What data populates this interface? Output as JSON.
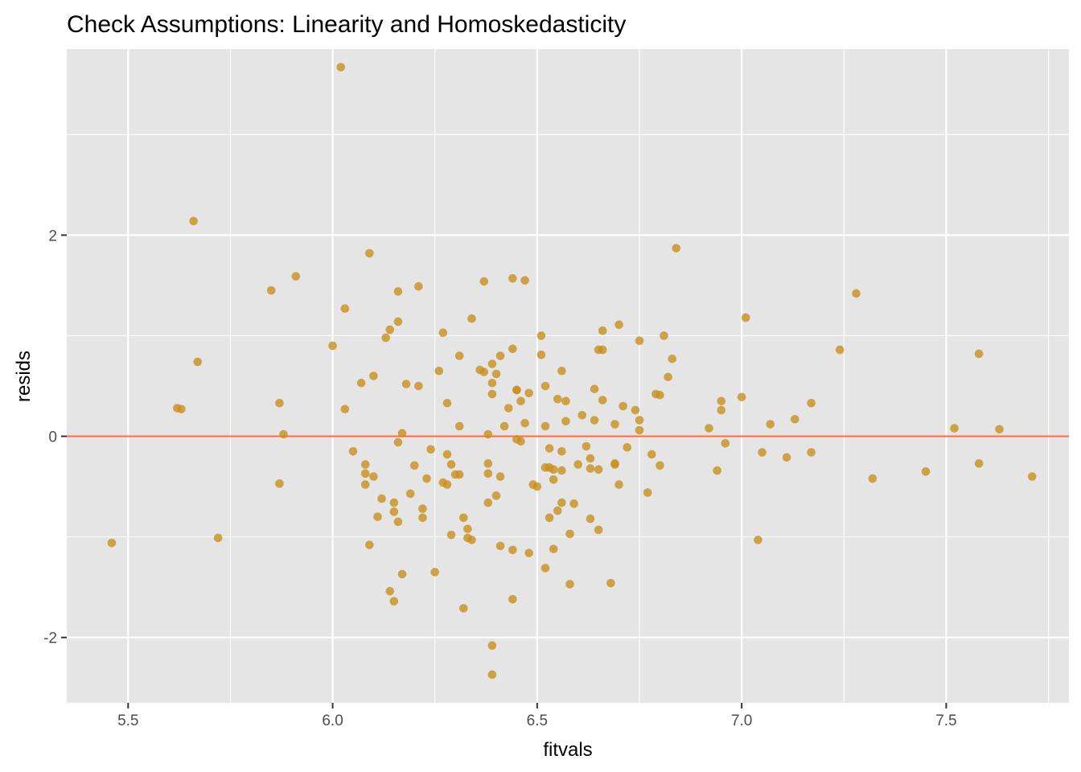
{
  "chart_data": {
    "type": "scatter",
    "title": "Check Assumptions: Linearity and Homoskedasticity",
    "xlabel": "fitvals",
    "ylabel": "resids",
    "xlim": [
      5.35,
      7.8
    ],
    "ylim": [
      -2.65,
      3.85
    ],
    "x_ticks": [
      5.5,
      6.0,
      6.5,
      7.0,
      7.5
    ],
    "x_tick_labels": [
      "5.5",
      "6.0",
      "6.5",
      "7.0",
      "7.5"
    ],
    "y_ticks": [
      -2,
      0,
      2
    ],
    "y_tick_labels": [
      "-2",
      "0",
      "2"
    ],
    "grid": true,
    "reference_line": {
      "y": 0,
      "color": "#FF7043"
    },
    "colors": {
      "panel": "#E5E5E5",
      "grid": "#FFFFFF",
      "point": "#C8901E"
    },
    "points": [
      [
        5.46,
        -1.06
      ],
      [
        5.62,
        0.28
      ],
      [
        5.63,
        0.27
      ],
      [
        5.66,
        2.14
      ],
      [
        5.67,
        0.74
      ],
      [
        5.72,
        -1.01
      ],
      [
        5.85,
        1.45
      ],
      [
        5.87,
        0.33
      ],
      [
        5.87,
        -0.47
      ],
      [
        5.88,
        0.02
      ],
      [
        5.91,
        1.59
      ],
      [
        6.0,
        0.9
      ],
      [
        6.02,
        3.67
      ],
      [
        6.03,
        1.27
      ],
      [
        6.03,
        0.27
      ],
      [
        6.05,
        -0.15
      ],
      [
        6.07,
        0.53
      ],
      [
        6.08,
        -0.28
      ],
      [
        6.08,
        -0.37
      ],
      [
        6.08,
        -0.48
      ],
      [
        6.09,
        1.82
      ],
      [
        6.09,
        -1.08
      ],
      [
        6.1,
        -0.4
      ],
      [
        6.1,
        0.6
      ],
      [
        6.11,
        -0.8
      ],
      [
        6.12,
        -0.62
      ],
      [
        6.13,
        0.98
      ],
      [
        6.14,
        1.06
      ],
      [
        6.14,
        -1.54
      ],
      [
        6.15,
        -1.64
      ],
      [
        6.15,
        -0.66
      ],
      [
        6.15,
        -0.75
      ],
      [
        6.16,
        -0.85
      ],
      [
        6.16,
        1.14
      ],
      [
        6.16,
        1.44
      ],
      [
        6.16,
        -0.06
      ],
      [
        6.17,
        0.03
      ],
      [
        6.17,
        -1.37
      ],
      [
        6.18,
        0.52
      ],
      [
        6.19,
        -0.57
      ],
      [
        6.2,
        -0.29
      ],
      [
        6.21,
        0.5
      ],
      [
        6.21,
        1.49
      ],
      [
        6.22,
        -0.72
      ],
      [
        6.22,
        -0.81
      ],
      [
        6.23,
        -0.42
      ],
      [
        6.24,
        -0.13
      ],
      [
        6.25,
        -1.35
      ],
      [
        6.26,
        0.65
      ],
      [
        6.27,
        -0.46
      ],
      [
        6.27,
        1.03
      ],
      [
        6.28,
        0.33
      ],
      [
        6.28,
        -0.48
      ],
      [
        6.28,
        -0.18
      ],
      [
        6.29,
        -0.28
      ],
      [
        6.29,
        -0.98
      ],
      [
        6.3,
        -0.38
      ],
      [
        6.31,
        -0.38
      ],
      [
        6.31,
        0.8
      ],
      [
        6.31,
        0.1
      ],
      [
        6.32,
        -0.81
      ],
      [
        6.33,
        -0.92
      ],
      [
        6.33,
        -1.01
      ],
      [
        6.32,
        -1.71
      ],
      [
        6.34,
        1.17
      ],
      [
        6.34,
        -1.03
      ],
      [
        6.36,
        0.66
      ],
      [
        6.37,
        1.54
      ],
      [
        6.37,
        0.64
      ],
      [
        6.38,
        -0.27
      ],
      [
        6.38,
        -0.66
      ],
      [
        6.38,
        -0.37
      ],
      [
        6.38,
        0.02
      ],
      [
        6.39,
        0.53
      ],
      [
        6.39,
        0.72
      ],
      [
        6.39,
        0.42
      ],
      [
        6.39,
        -2.08
      ],
      [
        6.39,
        -2.37
      ],
      [
        6.4,
        0.62
      ],
      [
        6.4,
        -0.59
      ],
      [
        6.41,
        0.8
      ],
      [
        6.41,
        -0.4
      ],
      [
        6.41,
        -1.09
      ],
      [
        6.42,
        0.1
      ],
      [
        6.43,
        0.28
      ],
      [
        6.44,
        -1.62
      ],
      [
        6.44,
        -1.13
      ],
      [
        6.44,
        0.87
      ],
      [
        6.44,
        1.57
      ],
      [
        6.45,
        0.46
      ],
      [
        6.45,
        0.46
      ],
      [
        6.45,
        -0.03
      ],
      [
        6.46,
        0.35
      ],
      [
        6.46,
        -0.05
      ],
      [
        6.47,
        1.55
      ],
      [
        6.47,
        0.13
      ],
      [
        6.48,
        0.43
      ],
      [
        6.48,
        -1.16
      ],
      [
        6.49,
        -0.48
      ],
      [
        6.5,
        -0.5
      ],
      [
        6.51,
        1.0
      ],
      [
        6.51,
        0.81
      ],
      [
        6.52,
        0.5
      ],
      [
        6.52,
        0.1
      ],
      [
        6.52,
        -1.31
      ],
      [
        6.52,
        -0.31
      ],
      [
        6.53,
        -0.12
      ],
      [
        6.53,
        -0.31
      ],
      [
        6.53,
        -0.81
      ],
      [
        6.54,
        -0.43
      ],
      [
        6.54,
        -1.12
      ],
      [
        6.54,
        -0.33
      ],
      [
        6.55,
        -0.74
      ],
      [
        6.55,
        0.37
      ],
      [
        6.56,
        -0.34
      ],
      [
        6.56,
        -0.66
      ],
      [
        6.56,
        -0.15
      ],
      [
        6.56,
        0.65
      ],
      [
        6.57,
        0.35
      ],
      [
        6.57,
        0.15
      ],
      [
        6.58,
        -0.97
      ],
      [
        6.58,
        -1.47
      ],
      [
        6.59,
        -0.67
      ],
      [
        6.6,
        -0.28
      ],
      [
        6.61,
        0.21
      ],
      [
        6.62,
        -0.1
      ],
      [
        6.63,
        -0.22
      ],
      [
        6.63,
        -0.32
      ],
      [
        6.63,
        -0.82
      ],
      [
        6.64,
        0.47
      ],
      [
        6.64,
        0.16
      ],
      [
        6.65,
        0.86
      ],
      [
        6.65,
        -0.93
      ],
      [
        6.65,
        -0.33
      ],
      [
        6.66,
        0.86
      ],
      [
        6.66,
        0.36
      ],
      [
        6.66,
        1.05
      ],
      [
        6.68,
        -1.46
      ],
      [
        6.69,
        -0.27
      ],
      [
        6.69,
        -0.28
      ],
      [
        6.69,
        0.12
      ],
      [
        6.7,
        1.11
      ],
      [
        6.7,
        -0.48
      ],
      [
        6.71,
        0.3
      ],
      [
        6.72,
        -0.11
      ],
      [
        6.74,
        0.26
      ],
      [
        6.75,
        0.16
      ],
      [
        6.75,
        0.06
      ],
      [
        6.75,
        0.95
      ],
      [
        6.77,
        -0.56
      ],
      [
        6.78,
        -0.18
      ],
      [
        6.79,
        0.42
      ],
      [
        6.8,
        0.41
      ],
      [
        6.8,
        -0.29
      ],
      [
        6.81,
        1.0
      ],
      [
        6.82,
        0.59
      ],
      [
        6.83,
        0.77
      ],
      [
        6.84,
        1.87
      ],
      [
        6.92,
        0.08
      ],
      [
        6.94,
        -0.34
      ],
      [
        6.95,
        0.26
      ],
      [
        6.95,
        0.35
      ],
      [
        6.96,
        -0.07
      ],
      [
        7.0,
        0.39
      ],
      [
        7.01,
        1.18
      ],
      [
        7.04,
        -1.03
      ],
      [
        7.05,
        -0.16
      ],
      [
        7.07,
        0.12
      ],
      [
        7.11,
        -0.21
      ],
      [
        7.13,
        0.17
      ],
      [
        7.17,
        0.33
      ],
      [
        7.17,
        -0.16
      ],
      [
        7.24,
        0.86
      ],
      [
        7.28,
        1.42
      ],
      [
        7.32,
        -0.42
      ],
      [
        7.45,
        -0.35
      ],
      [
        7.52,
        0.08
      ],
      [
        7.58,
        0.82
      ],
      [
        7.58,
        -0.27
      ],
      [
        7.63,
        0.07
      ],
      [
        7.71,
        -0.4
      ]
    ]
  }
}
